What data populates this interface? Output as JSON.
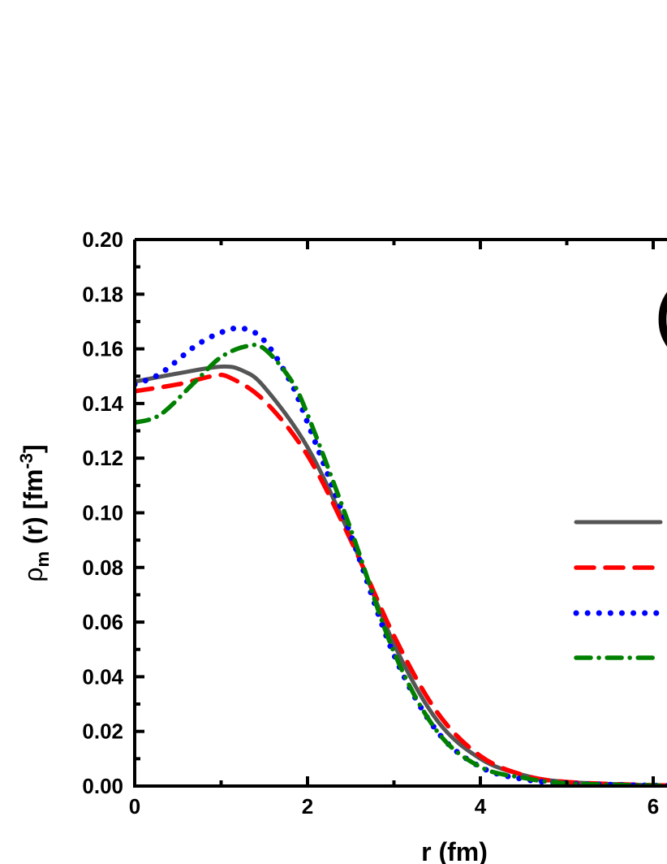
{
  "chart_data": {
    "type": "line",
    "title": "",
    "panel_label": "(",
    "xlabel": "r (fm)",
    "ylabel": {
      "main": "ρ",
      "sub": "m",
      "rest": " (r) [fm",
      "sup": "-3",
      "end": "]"
    },
    "xlim": [
      0,
      6.2
    ],
    "ylim": [
      0,
      0.2
    ],
    "xticks": [
      0,
      2,
      4,
      6
    ],
    "xtick_labels": [
      "0",
      "2",
      "4",
      "6"
    ],
    "yticks": [
      0,
      0.02,
      0.04,
      0.06,
      0.08,
      0.1,
      0.12,
      0.14,
      0.16,
      0.18,
      0.2
    ],
    "ytick_labels": [
      "0.00",
      "0.02",
      "0.04",
      "0.06",
      "0.08",
      "0.10",
      "0.12",
      "0.14",
      "0.16",
      "0.18",
      "0.20"
    ],
    "grid": false,
    "legend_placement": "right",
    "series": [
      {
        "style": "solid",
        "color": "#555555",
        "x": [
          0,
          0.5,
          1.0,
          1.25,
          1.5,
          2.0,
          2.5,
          3.0,
          3.5,
          4.0,
          4.5,
          5.0,
          6.0,
          6.5
        ],
        "y": [
          0.148,
          0.151,
          0.1535,
          0.152,
          0.146,
          0.124,
          0.091,
          0.052,
          0.024,
          0.01,
          0.004,
          0.0015,
          0.0003,
          0.0002
        ]
      },
      {
        "style": "dashed",
        "color": "#ff0000",
        "x": [
          0,
          0.5,
          0.9,
          1.1,
          1.5,
          2.0,
          2.5,
          3.0,
          3.5,
          4.0,
          4.5,
          5.0,
          6.0,
          6.5
        ],
        "y": [
          0.1445,
          0.147,
          0.15,
          0.1495,
          0.141,
          0.121,
          0.09,
          0.055,
          0.027,
          0.011,
          0.004,
          0.0015,
          0.0003,
          0.0002
        ]
      },
      {
        "style": "dotted",
        "color": "#0000ff",
        "x": [
          0,
          0.3,
          0.7,
          1.0,
          1.25,
          1.5,
          1.8,
          2.0,
          2.5,
          3.0,
          3.5,
          4.0,
          4.5,
          5.0,
          6.0,
          6.5
        ],
        "y": [
          0.147,
          0.151,
          0.161,
          0.166,
          0.1675,
          0.163,
          0.148,
          0.133,
          0.092,
          0.048,
          0.02,
          0.007,
          0.0025,
          0.001,
          0.0002,
          0.0001
        ]
      },
      {
        "style": "dashdot",
        "color": "#008000",
        "x": [
          0,
          0.3,
          0.7,
          1.0,
          1.3,
          1.5,
          1.8,
          2.0,
          2.5,
          3.0,
          3.5,
          4.0,
          4.5,
          5.0,
          6.0,
          6.5
        ],
        "y": [
          0.133,
          0.136,
          0.148,
          0.157,
          0.161,
          0.16,
          0.149,
          0.136,
          0.094,
          0.049,
          0.02,
          0.007,
          0.003,
          0.001,
          0.0002,
          0.0001
        ]
      }
    ]
  }
}
